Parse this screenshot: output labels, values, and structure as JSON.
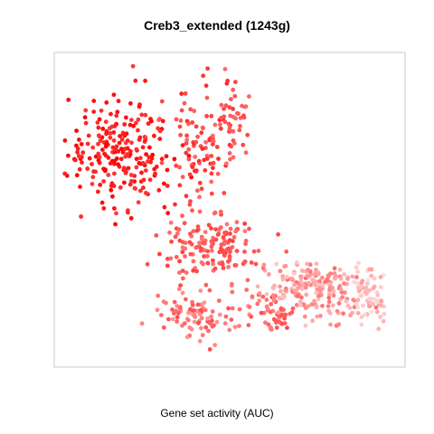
{
  "chart_data": {
    "type": "scatter",
    "title": "Creb3_extended (1243g)",
    "xlabel": "Gene set activity (AUC)",
    "ylabel": "",
    "grid": false,
    "legend": "none",
    "color_scale": {
      "high": "#ff0000",
      "low": "#ffffff"
    },
    "x_range": [
      0,
      100
    ],
    "y_range": [
      0,
      100
    ],
    "clusters": [
      {
        "name": "upper-left lobe",
        "center": [
          18,
          70
        ],
        "spread": [
          13,
          16
        ],
        "count": 230,
        "activity": [
          0.75,
          1.0
        ]
      },
      {
        "name": "upper-middle arm",
        "center": [
          42,
          72
        ],
        "spread": [
          7,
          16
        ],
        "count": 90,
        "activity": [
          0.55,
          0.85
        ]
      },
      {
        "name": "right top arm",
        "center": [
          51,
          78
        ],
        "spread": [
          4,
          9
        ],
        "count": 45,
        "activity": [
          0.55,
          0.8
        ]
      },
      {
        "name": "middle bridge",
        "center": [
          44,
          38
        ],
        "spread": [
          12,
          9
        ],
        "count": 150,
        "activity": [
          0.5,
          0.75
        ]
      },
      {
        "name": "lower-middle",
        "center": [
          40,
          15
        ],
        "spread": [
          10,
          7
        ],
        "count": 90,
        "activity": [
          0.35,
          0.7
        ]
      },
      {
        "name": "lower-left tail",
        "center": [
          63,
          15
        ],
        "spread": [
          5,
          5
        ],
        "count": 45,
        "activity": [
          0.45,
          0.7
        ]
      },
      {
        "name": "right band",
        "center": [
          74,
          24
        ],
        "spread": [
          14,
          8
        ],
        "count": 200,
        "activity": [
          0.15,
          0.55
        ]
      },
      {
        "name": "far-right tip",
        "center": [
          91,
          22
        ],
        "spread": [
          5,
          8
        ],
        "count": 70,
        "activity": [
          0.05,
          0.35
        ]
      }
    ]
  }
}
